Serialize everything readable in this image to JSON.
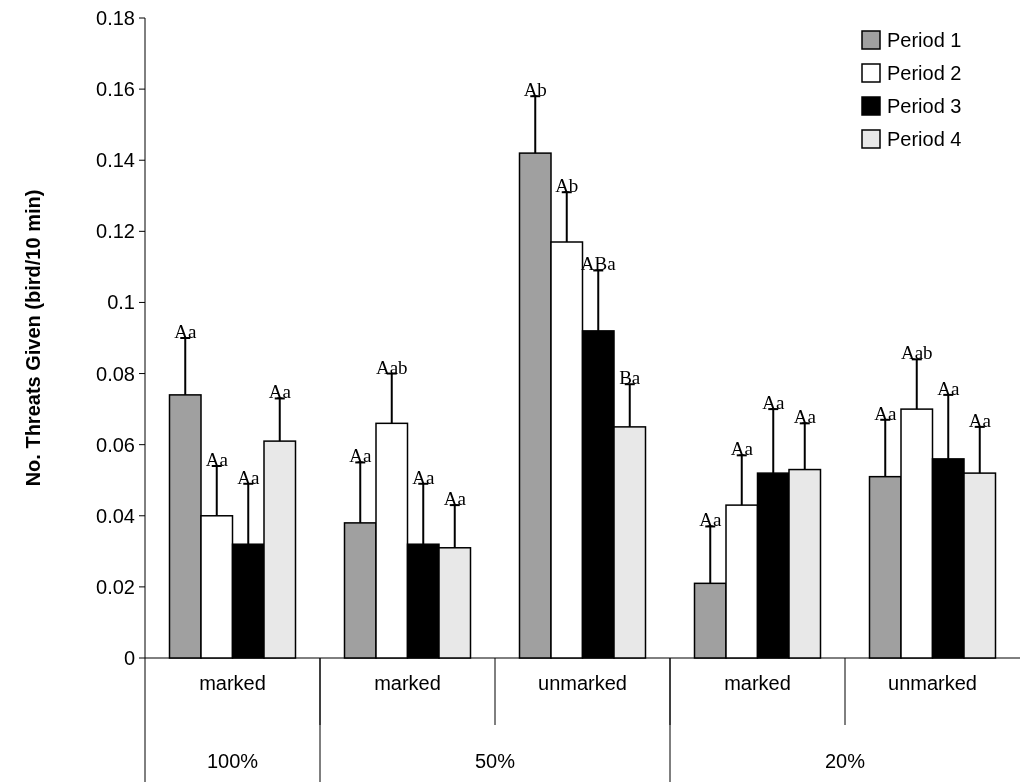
{
  "chart_data": {
    "type": "bar",
    "ylabel": "No. Threats Given (bird/10 min)",
    "categories": [
      "marked",
      "marked",
      "unmarked",
      "marked",
      "unmarked"
    ],
    "annotations": [
      "100%",
      "50%",
      "20%"
    ],
    "series": [
      {
        "name": "Period 1",
        "color": "#a0a0a0",
        "values": [
          0.074,
          0.038,
          0.142,
          0.021,
          0.051
        ],
        "errors": [
          [
            0.074,
            0.09
          ],
          [
            0.038,
            0.055
          ],
          [
            0.142,
            0.158
          ],
          [
            0.021,
            0.037
          ],
          [
            0.051,
            0.067
          ]
        ],
        "value_labels": [
          "Aa",
          "Aa",
          "Ab",
          "Aa",
          "Aa"
        ]
      },
      {
        "name": "Period 2",
        "color": "#ffffff",
        "values": [
          0.04,
          0.066,
          0.117,
          0.043,
          0.07
        ],
        "errors": [
          [
            0.04,
            0.054
          ],
          [
            0.066,
            0.08
          ],
          [
            0.117,
            0.131
          ],
          [
            0.043,
            0.057
          ],
          [
            0.07,
            0.084
          ]
        ],
        "value_labels": [
          "Aa",
          "Aab",
          "Ab",
          "Aa",
          "Aab"
        ]
      },
      {
        "name": "Period 3",
        "color": "#000000",
        "values": [
          0.032,
          0.032,
          0.092,
          0.052,
          0.056
        ],
        "errors": [
          [
            0.032,
            0.049
          ],
          [
            0.032,
            0.049
          ],
          [
            0.092,
            0.109
          ],
          [
            0.052,
            0.07
          ],
          [
            0.056,
            0.074
          ]
        ],
        "value_labels": [
          "Aa",
          "Aa",
          "ABa",
          "Aa",
          "Aa"
        ]
      },
      {
        "name": "Period 4",
        "color": "#e8e8e8",
        "values": [
          0.061,
          0.031,
          0.065,
          0.053,
          0.052
        ],
        "errors": [
          [
            0.061,
            0.073
          ],
          [
            0.031,
            0.043
          ],
          [
            0.065,
            0.077
          ],
          [
            0.053,
            0.066
          ],
          [
            0.052,
            0.065
          ]
        ],
        "value_labels": [
          "Aa",
          "Aa",
          "Ba",
          "Aa",
          "Aa"
        ]
      }
    ],
    "ylim": [
      0,
      0.18
    ],
    "yticks": [
      0,
      0.02,
      0.04,
      0.06,
      0.08,
      0.1,
      0.12,
      0.14,
      0.16,
      0.18
    ],
    "grid": false,
    "legend": "top right"
  }
}
